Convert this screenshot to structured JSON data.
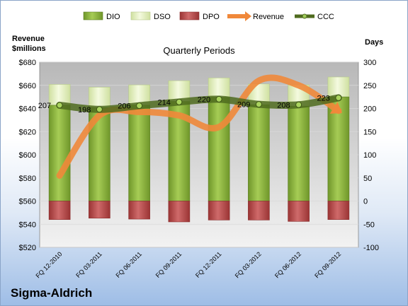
{
  "company": "Sigma-Aldrich",
  "chart_data": {
    "type": "bar",
    "title": "Quarterly Periods",
    "left_axis_label_line1": "Revenue",
    "left_axis_label_line2": "$millions",
    "right_axis_label": "Days",
    "left_axis": {
      "min": 520,
      "max": 680,
      "ticks": [
        "$680",
        "$660",
        "$640",
        "$620",
        "$600",
        "$580",
        "$560",
        "$540",
        "$520"
      ],
      "tick_values": [
        680,
        660,
        640,
        620,
        600,
        580,
        560,
        540,
        520
      ]
    },
    "right_axis": {
      "min": -100,
      "max": 300,
      "ticks": [
        "300",
        "250",
        "200",
        "150",
        "100",
        "50",
        "0",
        "-50",
        "-100"
      ],
      "tick_values": [
        300,
        250,
        200,
        150,
        100,
        50,
        0,
        -50,
        -100
      ]
    },
    "categories": [
      "FQ 12-2010",
      "FQ 03-2011",
      "FQ 06-2011",
      "FQ 09-2011",
      "FQ 12-2011",
      "FQ 03-2012",
      "FQ 06-2012",
      "FQ 09-2012"
    ],
    "legend_position": "top",
    "grid": true,
    "series": [
      {
        "name": "DIO",
        "type": "bar",
        "axis": "right",
        "color": "#8db53c",
        "values": [
          207,
          202,
          207,
          215,
          224,
          208,
          205,
          225
        ]
      },
      {
        "name": "DSO",
        "type": "bar",
        "axis": "right",
        "color": "#e8f3c8",
        "values": [
          45,
          44,
          44,
          45,
          42,
          45,
          46,
          43
        ]
      },
      {
        "name": "DPO",
        "type": "bar",
        "axis": "right",
        "color": "#b84c4c",
        "values": [
          -40,
          -37,
          -39,
          -45,
          -41,
          -41,
          -44,
          -40
        ]
      },
      {
        "name": "Revenue",
        "type": "line",
        "axis": "left",
        "color": "#f0883a",
        "values": [
          582,
          634,
          637,
          634,
          624,
          664,
          660,
          638
        ]
      },
      {
        "name": "CCC",
        "type": "line",
        "axis": "right",
        "color": "#4f6b1e",
        "values": [
          207,
          198,
          206,
          214,
          220,
          209,
          208,
          223
        ],
        "labels": [
          "207",
          "198",
          "206",
          "214",
          "220",
          "209",
          "208",
          "223"
        ]
      }
    ]
  }
}
